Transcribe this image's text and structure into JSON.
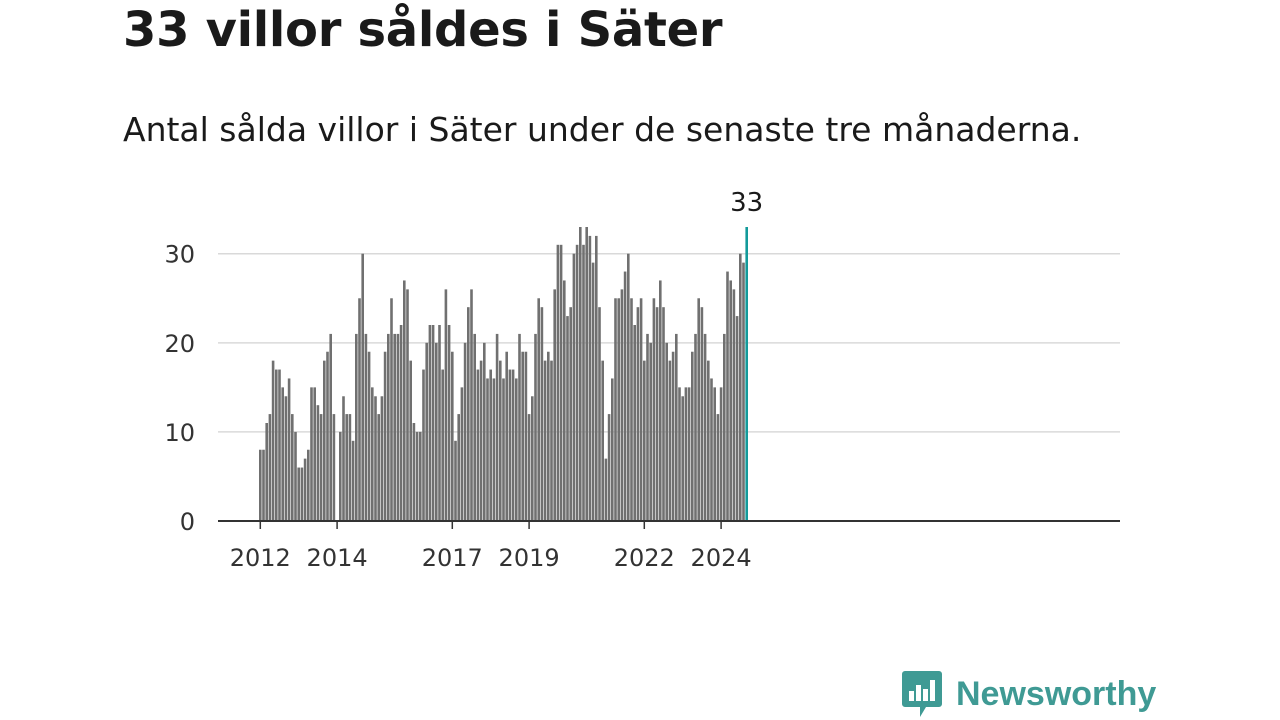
{
  "title": "33 villor såldes i Säter",
  "subtitle": "Antal sålda villor i Säter under de senaste tre månaderna.",
  "brand": {
    "name": "Newsworthy",
    "color": "#3f9a94"
  },
  "colors": {
    "bar": "#707070",
    "highlight": "#139a9a",
    "grid": "#d9d9d9",
    "axis": "#333333"
  },
  "chart_data": {
    "type": "bar",
    "title": "33 villor såldes i Säter",
    "xlabel": "",
    "ylabel": "",
    "ylim": [
      0,
      33
    ],
    "yticks": [
      0,
      10,
      20,
      30
    ],
    "grid": true,
    "legend": "none",
    "x_start": "2012-01",
    "xticks": [
      {
        "label": "2012",
        "index": 0
      },
      {
        "label": "2014",
        "index": 24
      },
      {
        "label": "2017",
        "index": 60
      },
      {
        "label": "2019",
        "index": 84
      },
      {
        "label": "2022",
        "index": 120
      },
      {
        "label": "2024",
        "index": 144
      }
    ],
    "values": [
      8,
      8,
      11,
      12,
      18,
      17,
      17,
      15,
      14,
      16,
      12,
      10,
      6,
      6,
      7,
      8,
      15,
      15,
      13,
      12,
      18,
      19,
      21,
      12,
      0,
      10,
      14,
      12,
      12,
      9,
      21,
      25,
      30,
      21,
      19,
      15,
      14,
      12,
      14,
      19,
      21,
      25,
      21,
      21,
      22,
      27,
      26,
      18,
      11,
      10,
      10,
      17,
      20,
      22,
      22,
      20,
      22,
      17,
      26,
      22,
      19,
      9,
      12,
      15,
      20,
      24,
      26,
      21,
      17,
      18,
      20,
      16,
      17,
      16,
      21,
      18,
      16,
      19,
      17,
      17,
      16,
      21,
      19,
      19,
      12,
      14,
      21,
      25,
      24,
      18,
      19,
      18,
      26,
      31,
      31,
      27,
      23,
      24,
      30,
      31,
      33,
      31,
      33,
      32,
      29,
      32,
      24,
      18,
      7,
      12,
      16,
      25,
      25,
      26,
      28,
      30,
      25,
      22,
      24,
      25,
      18,
      21,
      20,
      25,
      24,
      27,
      24,
      20,
      18,
      19,
      21,
      15,
      14,
      15,
      15,
      19,
      21,
      25,
      24,
      21,
      18,
      16,
      15,
      12,
      15,
      21,
      28,
      27,
      26,
      23,
      30,
      29,
      33
    ],
    "highlight_index": 152,
    "highlight_label": "33"
  }
}
